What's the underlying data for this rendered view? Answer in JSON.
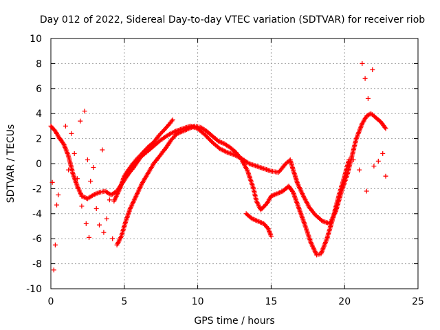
{
  "chart_data": {
    "type": "scatter",
    "title": "Day 012 of 2022, Sidereal Day-to-day VTEC variation (SDTVAR) for receiver riob",
    "xlabel": "GPS time / hours",
    "ylabel": "SDTVAR / TECUs",
    "xlim": [
      0,
      25
    ],
    "ylim": [
      -10,
      10
    ],
    "xticks": [
      0,
      5,
      10,
      15,
      20,
      25
    ],
    "yticks": [
      -10,
      -8,
      -6,
      -4,
      -2,
      0,
      2,
      4,
      6,
      8,
      10
    ],
    "grid": true,
    "marker": "+",
    "color": "#ff0000",
    "series": [
      {
        "name": "trace-a",
        "points": [
          [
            0.0,
            3.0
          ],
          [
            0.3,
            2.6
          ],
          [
            0.5,
            2.2
          ],
          [
            0.9,
            1.5
          ],
          [
            1.2,
            0.6
          ],
          [
            1.5,
            -0.8
          ],
          [
            1.8,
            -1.8
          ],
          [
            2.1,
            -2.6
          ],
          [
            2.5,
            -2.8
          ],
          [
            2.9,
            -2.5
          ],
          [
            3.3,
            -2.3
          ],
          [
            3.7,
            -2.2
          ],
          [
            4.1,
            -2.5
          ],
          [
            4.5,
            -2.2
          ],
          [
            4.9,
            -1.5
          ],
          [
            5.3,
            -0.8
          ],
          [
            5.7,
            -0.2
          ],
          [
            6.1,
            0.5
          ],
          [
            6.6,
            1.0
          ],
          [
            7.0,
            1.4
          ],
          [
            7.5,
            1.9
          ],
          [
            8.0,
            2.3
          ],
          [
            8.5,
            2.6
          ],
          [
            9.0,
            2.8
          ],
          [
            9.5,
            3.0
          ],
          [
            10.0,
            2.8
          ],
          [
            10.5,
            2.3
          ],
          [
            11.0,
            1.7
          ],
          [
            11.5,
            1.2
          ],
          [
            12.0,
            0.9
          ],
          [
            12.5,
            0.7
          ],
          [
            13.0,
            0.4
          ],
          [
            13.5,
            0.0
          ],
          [
            14.0,
            -0.2
          ],
          [
            14.5,
            -0.4
          ],
          [
            15.0,
            -0.6
          ],
          [
            15.5,
            -0.7
          ],
          [
            16.0,
            0.0
          ],
          [
            16.3,
            0.3
          ],
          [
            16.5,
            -0.5
          ],
          [
            16.8,
            -1.6
          ],
          [
            17.2,
            -2.6
          ],
          [
            17.6,
            -3.5
          ],
          [
            18.0,
            -4.1
          ],
          [
            18.5,
            -4.6
          ],
          [
            19.0,
            -4.8
          ],
          [
            19.4,
            -3.8
          ],
          [
            19.8,
            -2.2
          ],
          [
            20.2,
            -0.8
          ],
          [
            20.5,
            0.6
          ],
          [
            20.8,
            2.0
          ],
          [
            21.2,
            3.2
          ],
          [
            21.5,
            3.8
          ],
          [
            21.8,
            4.0
          ],
          [
            22.1,
            3.7
          ],
          [
            22.5,
            3.3
          ],
          [
            22.8,
            2.8
          ]
        ]
      },
      {
        "name": "trace-b",
        "points": [
          [
            4.5,
            -6.5
          ],
          [
            4.8,
            -5.8
          ],
          [
            5.1,
            -4.6
          ],
          [
            5.4,
            -3.6
          ],
          [
            5.8,
            -2.6
          ],
          [
            6.2,
            -1.6
          ],
          [
            6.6,
            -0.8
          ],
          [
            7.0,
            0.0
          ],
          [
            7.4,
            0.6
          ],
          [
            7.8,
            1.2
          ],
          [
            8.2,
            1.9
          ],
          [
            8.6,
            2.4
          ],
          [
            9.0,
            2.6
          ],
          [
            9.4,
            2.8
          ],
          [
            9.8,
            3.0
          ],
          [
            10.2,
            2.9
          ],
          [
            10.6,
            2.6
          ],
          [
            11.0,
            2.2
          ],
          [
            11.4,
            1.8
          ],
          [
            11.8,
            1.6
          ],
          [
            12.2,
            1.3
          ],
          [
            12.6,
            0.9
          ],
          [
            13.0,
            0.3
          ],
          [
            13.4,
            -0.6
          ],
          [
            13.8,
            -2.0
          ],
          [
            14.0,
            -3.0
          ],
          [
            14.3,
            -3.7
          ],
          [
            14.7,
            -3.2
          ],
          [
            15.0,
            -2.6
          ],
          [
            15.4,
            -2.4
          ],
          [
            15.8,
            -2.2
          ],
          [
            16.2,
            -1.8
          ],
          [
            16.5,
            -2.3
          ],
          [
            16.9,
            -3.6
          ],
          [
            17.3,
            -4.9
          ],
          [
            17.7,
            -6.3
          ],
          [
            18.1,
            -7.3
          ],
          [
            18.4,
            -7.2
          ],
          [
            18.8,
            -6.0
          ],
          [
            19.2,
            -4.4
          ],
          [
            19.6,
            -2.6
          ],
          [
            20.0,
            -1.0
          ],
          [
            20.3,
            0.3
          ]
        ]
      },
      {
        "name": "trace-c",
        "points": [
          [
            4.3,
            -3.0
          ],
          [
            4.7,
            -2.0
          ],
          [
            5.0,
            -1.0
          ],
          [
            5.4,
            -0.3
          ],
          [
            5.8,
            0.3
          ],
          [
            6.2,
            0.8
          ],
          [
            6.6,
            1.3
          ],
          [
            7.0,
            1.7
          ],
          [
            7.4,
            2.3
          ],
          [
            7.8,
            2.8
          ],
          [
            8.3,
            3.5
          ]
        ]
      },
      {
        "name": "trace-d",
        "points": [
          [
            13.3,
            -4.0
          ],
          [
            13.7,
            -4.4
          ],
          [
            14.1,
            -4.6
          ],
          [
            14.5,
            -4.8
          ],
          [
            14.8,
            -5.2
          ],
          [
            15.0,
            -5.8
          ]
        ]
      },
      {
        "name": "scatter-early",
        "points": [
          [
            0.1,
            -1.5
          ],
          [
            0.2,
            -8.5
          ],
          [
            0.3,
            -6.5
          ],
          [
            0.4,
            -3.3
          ],
          [
            0.5,
            -2.5
          ],
          [
            0.6,
            2.0
          ],
          [
            1.0,
            3.0
          ],
          [
            1.2,
            -0.5
          ],
          [
            1.4,
            2.4
          ],
          [
            1.6,
            0.8
          ],
          [
            1.8,
            -1.2
          ],
          [
            2.0,
            3.4
          ],
          [
            2.1,
            -3.4
          ],
          [
            2.3,
            4.2
          ],
          [
            2.4,
            -4.8
          ],
          [
            2.5,
            0.3
          ],
          [
            2.6,
            -5.9
          ],
          [
            2.7,
            -1.4
          ],
          [
            2.9,
            -0.3
          ],
          [
            3.1,
            -3.6
          ],
          [
            3.3,
            -4.9
          ],
          [
            3.5,
            1.1
          ],
          [
            3.6,
            -5.5
          ],
          [
            3.8,
            -4.4
          ],
          [
            4.0,
            -2.9
          ],
          [
            4.2,
            -6.0
          ]
        ]
      },
      {
        "name": "scatter-late",
        "points": [
          [
            20.6,
            0.3
          ],
          [
            21.0,
            -0.5
          ],
          [
            21.2,
            8.0
          ],
          [
            21.4,
            6.8
          ],
          [
            21.6,
            5.2
          ],
          [
            21.5,
            -2.2
          ],
          [
            21.9,
            7.5
          ],
          [
            22.0,
            -0.2
          ],
          [
            22.3,
            0.2
          ],
          [
            22.6,
            0.8
          ],
          [
            22.8,
            -1.0
          ]
        ]
      }
    ]
  }
}
